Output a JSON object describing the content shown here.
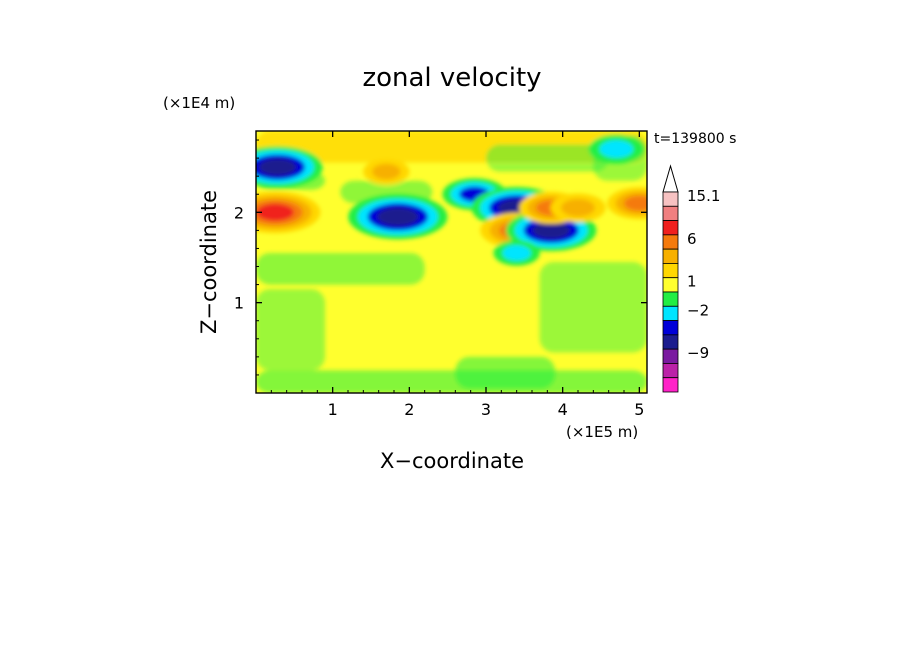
{
  "chart_data": {
    "type": "heatmap",
    "title": "zonal velocity",
    "xlabel": "X−coordinate",
    "ylabel": "Z−coordinate",
    "x_scale_label": "(×1E5 m)",
    "y_scale_label": "(×1E4 m)",
    "time_label": "t=139800 s",
    "xlim": [
      0,
      5.1
    ],
    "ylim": [
      0,
      2.9
    ],
    "x_ticks": [
      1,
      2,
      3,
      4,
      5
    ],
    "x_tick_labels": [
      "1",
      "2",
      "3",
      "4",
      "5"
    ],
    "y_ticks": [
      1,
      2
    ],
    "y_tick_labels": [
      "1",
      "2"
    ],
    "colorbar": {
      "labels": [
        "15.1",
        "6",
        "1",
        "−2",
        "−9"
      ],
      "levels_top_to_bottom": [
        {
          "color": "#ffffff",
          "kind": "triangle"
        },
        {
          "color": "#f7c2c2"
        },
        {
          "color": "#f07f80"
        },
        {
          "color": "#f0201e"
        },
        {
          "color": "#f57a0c"
        },
        {
          "color": "#f7b000"
        },
        {
          "color": "#ffd700"
        },
        {
          "color": "#ffff2e"
        },
        {
          "color": "#22ee44"
        },
        {
          "color": "#00e5ff"
        },
        {
          "color": "#0000d8"
        },
        {
          "color": "#1c1c8e"
        },
        {
          "color": "#7a1aa0"
        },
        {
          "color": "#bb22a8"
        },
        {
          "color": "#ff22c8"
        }
      ]
    },
    "features": [
      {
        "x": 0.28,
        "z": 2.5,
        "value": -8
      },
      {
        "x": 0.25,
        "z": 2.0,
        "value": 8
      },
      {
        "x": 1.85,
        "z": 1.95,
        "value": -9
      },
      {
        "x": 1.7,
        "z": 2.45,
        "value": 3
      },
      {
        "x": 2.85,
        "z": 2.2,
        "value": -5
      },
      {
        "x": 3.4,
        "z": 2.05,
        "value": -8
      },
      {
        "x": 3.4,
        "z": 1.8,
        "value": 6
      },
      {
        "x": 3.85,
        "z": 1.8,
        "value": -8
      },
      {
        "x": 3.85,
        "z": 2.05,
        "value": 5
      },
      {
        "x": 4.2,
        "z": 2.05,
        "value": 4
      },
      {
        "x": 5.0,
        "z": 2.1,
        "value": 5
      },
      {
        "x": 3.4,
        "z": 1.55,
        "value": -3
      },
      {
        "x": 4.7,
        "z": 2.7,
        "value": -4
      }
    ]
  }
}
